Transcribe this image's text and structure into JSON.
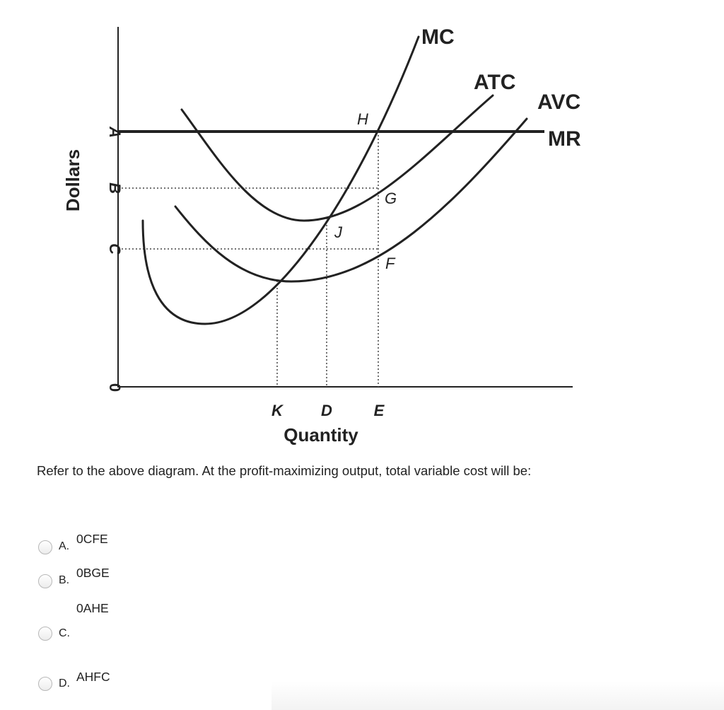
{
  "diagram": {
    "y_axis_label": "Dollars",
    "x_axis_label": "Quantity",
    "origin_label": "0",
    "price_labels": {
      "a": "A",
      "b": "B",
      "c": "C"
    },
    "quantity_labels": {
      "k": "K",
      "d": "D",
      "e": "E"
    },
    "curve_labels": {
      "mc": "MC",
      "atc": "ATC",
      "avc": "AVC",
      "mr": "MR"
    },
    "point_labels": {
      "h": "H",
      "g": "G",
      "j": "J",
      "f": "F"
    }
  },
  "question": {
    "text": "Refer to the above diagram. At the profit-maximizing output, total variable cost will be:"
  },
  "options": [
    {
      "letter": "A.",
      "text": "0CFE"
    },
    {
      "letter": "B.",
      "text": "0BGE"
    },
    {
      "letter": "C.",
      "text": "0AHE"
    },
    {
      "letter": "D.",
      "text": "AHFC"
    }
  ]
}
